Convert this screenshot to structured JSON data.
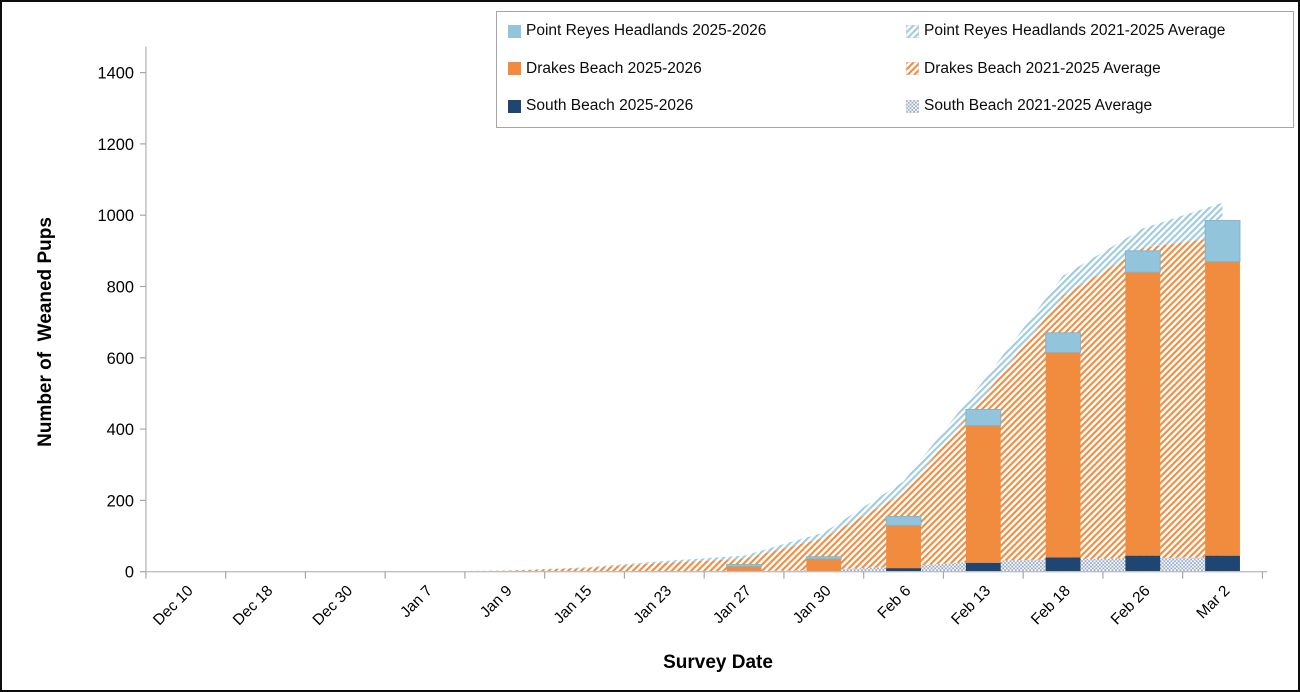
{
  "window": {
    "background": "#FFFFFF",
    "border_color": "#0D0D0D"
  },
  "chart_data": {
    "type": "combo",
    "subtype": "stacked-bars-2025-2026-with-stacked-area-2021-2025-averages",
    "title": "",
    "xlabel": "Survey Date",
    "ylabel": "Number of  Weaned Pups",
    "ylim": [
      0,
      1400
    ],
    "yticks": [
      0,
      200,
      400,
      600,
      800,
      1000,
      1200,
      1400
    ],
    "grid": false,
    "legend_position": "top-right",
    "axis_line_color": "#BFBFBF",
    "tick_color": "#A6A6A6",
    "categories": [
      "Dec 10",
      "Dec 18",
      "Dec 30",
      "Jan 7",
      "Jan 9",
      "Jan 15",
      "Jan 23",
      "Jan 27",
      "Jan 30",
      "Feb 6",
      "Feb 13",
      "Feb 18",
      "Feb 26",
      "Mar 2"
    ],
    "bar_series": [
      {
        "name": "South Beach 2025-2026",
        "color": "#1F4571",
        "values": [
          0,
          0,
          0,
          0,
          0,
          0,
          0,
          0,
          0,
          10,
          25,
          40,
          45,
          45
        ]
      },
      {
        "name": "Drakes Beach 2025-2026",
        "color": "#F18C3E",
        "values": [
          0,
          0,
          0,
          0,
          0,
          0,
          0,
          15,
          36,
          120,
          385,
          575,
          795,
          825
        ]
      },
      {
        "name": "Point Reyes Headlands 2025-2026",
        "color": "#92C5DC",
        "values": [
          0,
          0,
          0,
          0,
          0,
          0,
          0,
          5,
          6,
          25,
          45,
          55,
          60,
          115
        ]
      }
    ],
    "area_series": [
      {
        "name": "South Beach 2021-2025 Average",
        "pattern": "dotsSouth",
        "color": "#94AACD",
        "values": [
          0,
          0,
          0,
          0,
          0,
          0,
          0,
          1,
          5,
          15,
          30,
          35,
          38,
          40
        ]
      },
      {
        "name": "Drakes Beach 2021-2025 Average",
        "pattern": "hatchOrange",
        "color": "#F08C3D",
        "values": [
          0,
          0,
          0,
          1,
          3,
          10,
          25,
          35,
          90,
          205,
          460,
          740,
          870,
          900
        ]
      },
      {
        "name": "Point Reyes Headlands 2021-2025 Average",
        "pattern": "hatchBlue",
        "color": "#9DCBDF",
        "values": [
          0,
          0,
          0,
          0,
          0,
          2,
          5,
          9,
          15,
          33,
          45,
          55,
          55,
          95
        ]
      }
    ],
    "legend_entries": [
      {
        "label": "Point Reyes Headlands 2025-2026",
        "swatch": "solid",
        "color": "#92C5DC"
      },
      {
        "label": "Point Reyes Headlands 2021-2025 Average",
        "swatch": "pattern",
        "pattern": "hatchBlue"
      },
      {
        "label": "Drakes Beach 2025-2026",
        "swatch": "solid",
        "color": "#F18C3E"
      },
      {
        "label": "Drakes Beach 2021-2025 Average",
        "swatch": "pattern",
        "pattern": "hatchOrange"
      },
      {
        "label": "South Beach 2025-2026",
        "swatch": "solid",
        "color": "#1F4571"
      },
      {
        "label": "South Beach 2021-2025 Average",
        "swatch": "pattern",
        "pattern": "dotsSouth"
      }
    ]
  }
}
